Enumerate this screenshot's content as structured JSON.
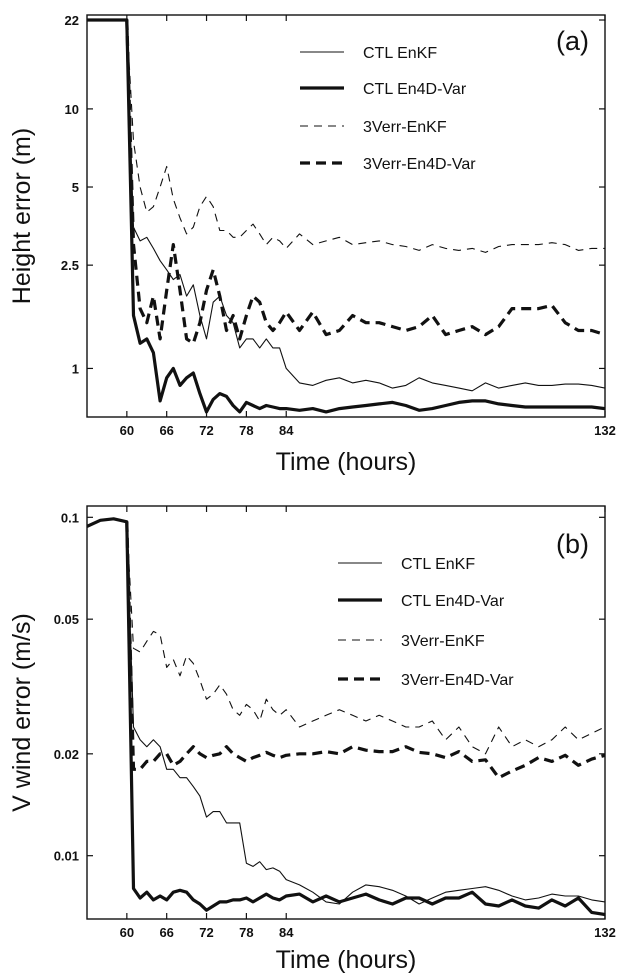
{
  "chart_data": [
    {
      "type": "line",
      "panel_label": "(a)",
      "xlabel": "Time (hours)",
      "ylabel": "Height error (m)",
      "y_scale": "log",
      "xlim": [
        54,
        132
      ],
      "ylim": [
        0.65,
        23
      ],
      "x_ticks": [
        60,
        66,
        72,
        78,
        84,
        132
      ],
      "y_ticks": [
        1,
        2.5,
        5,
        10,
        22
      ],
      "legend_position": "top-right",
      "grid": false,
      "series": [
        {
          "name": "CTL EnKF",
          "style": "thin-solid",
          "x": [
            54,
            60,
            61,
            62,
            63,
            64,
            65,
            66,
            67,
            68,
            69,
            70,
            71,
            72,
            73,
            74,
            75,
            76,
            77,
            78,
            79,
            80,
            81,
            82,
            83,
            84,
            86,
            88,
            90,
            92,
            94,
            96,
            98,
            100,
            102,
            104,
            106,
            108,
            110,
            112,
            114,
            116,
            118,
            120,
            122,
            124,
            126,
            128,
            130,
            132
          ],
          "y": [
            22,
            22,
            3.5,
            3.1,
            3.2,
            2.9,
            2.6,
            2.4,
            2.2,
            2.3,
            1.9,
            2.1,
            1.6,
            1.3,
            1.8,
            1.9,
            1.6,
            1.5,
            1.2,
            1.3,
            1.3,
            1.2,
            1.3,
            1.2,
            1.2,
            1.0,
            0.88,
            0.86,
            0.9,
            0.92,
            0.88,
            0.9,
            0.88,
            0.84,
            0.86,
            0.92,
            0.88,
            0.86,
            0.84,
            0.82,
            0.88,
            0.84,
            0.86,
            0.88,
            0.86,
            0.86,
            0.87,
            0.87,
            0.86,
            0.84
          ]
        },
        {
          "name": "CTL En4D-Var",
          "style": "thick-solid",
          "x": [
            54,
            60,
            61,
            62,
            63,
            64,
            65,
            66,
            67,
            68,
            69,
            70,
            71,
            72,
            73,
            74,
            75,
            76,
            77,
            78,
            79,
            80,
            81,
            82,
            83,
            84,
            86,
            88,
            90,
            92,
            94,
            96,
            98,
            100,
            102,
            104,
            106,
            108,
            110,
            112,
            114,
            116,
            118,
            120,
            122,
            124,
            126,
            128,
            130,
            132
          ],
          "y": [
            22,
            22,
            1.6,
            1.25,
            1.3,
            1.15,
            0.75,
            0.92,
            1.0,
            0.86,
            0.92,
            0.96,
            0.8,
            0.68,
            0.76,
            0.8,
            0.78,
            0.72,
            0.68,
            0.74,
            0.72,
            0.7,
            0.72,
            0.71,
            0.7,
            0.7,
            0.69,
            0.7,
            0.68,
            0.7,
            0.71,
            0.72,
            0.73,
            0.74,
            0.72,
            0.69,
            0.7,
            0.72,
            0.74,
            0.75,
            0.75,
            0.73,
            0.72,
            0.71,
            0.71,
            0.71,
            0.71,
            0.71,
            0.71,
            0.7
          ]
        },
        {
          "name": "3Verr-EnKF",
          "style": "thin-dashed",
          "x": [
            60,
            61,
            62,
            63,
            64,
            65,
            66,
            67,
            68,
            69,
            70,
            71,
            72,
            73,
            74,
            75,
            76,
            77,
            78,
            79,
            80,
            81,
            82,
            83,
            84,
            86,
            88,
            90,
            92,
            94,
            96,
            98,
            100,
            102,
            104,
            106,
            108,
            110,
            112,
            114,
            116,
            118,
            120,
            122,
            124,
            126,
            128,
            130,
            132
          ],
          "y": [
            22,
            7.5,
            5.0,
            4.0,
            4.2,
            5.0,
            6.0,
            4.5,
            3.8,
            3.3,
            3.5,
            4.2,
            4.6,
            4.2,
            3.4,
            3.4,
            3.2,
            3.2,
            3.4,
            3.6,
            3.3,
            3.0,
            3.2,
            3.1,
            2.9,
            3.3,
            3.0,
            3.1,
            3.2,
            3.0,
            3.05,
            3.1,
            3.0,
            2.95,
            2.85,
            3.0,
            2.9,
            2.85,
            2.9,
            2.8,
            2.95,
            3.0,
            3.0,
            3.0,
            3.05,
            3.0,
            2.85,
            2.9,
            2.9
          ]
        },
        {
          "name": "3Verr-En4D-Var",
          "style": "thick-dashed",
          "x": [
            60,
            61,
            62,
            63,
            64,
            65,
            66,
            67,
            68,
            69,
            70,
            71,
            72,
            73,
            74,
            75,
            76,
            77,
            78,
            79,
            80,
            81,
            82,
            83,
            84,
            86,
            88,
            90,
            92,
            94,
            96,
            98,
            100,
            102,
            104,
            106,
            108,
            110,
            112,
            114,
            116,
            118,
            120,
            122,
            124,
            126,
            128,
            130,
            132
          ],
          "y": [
            22,
            3.0,
            1.7,
            1.5,
            1.9,
            1.3,
            2.0,
            3.0,
            2.0,
            1.3,
            1.25,
            1.5,
            2.0,
            2.4,
            1.9,
            1.4,
            1.6,
            1.3,
            1.6,
            1.9,
            1.8,
            1.5,
            1.4,
            1.5,
            1.65,
            1.4,
            1.65,
            1.35,
            1.4,
            1.6,
            1.5,
            1.5,
            1.45,
            1.4,
            1.45,
            1.6,
            1.35,
            1.4,
            1.45,
            1.35,
            1.45,
            1.7,
            1.7,
            1.7,
            1.75,
            1.5,
            1.4,
            1.4,
            1.35
          ]
        }
      ]
    },
    {
      "type": "line",
      "panel_label": "(b)",
      "xlabel": "Time (hours)",
      "ylabel": "V wind error (m/s)",
      "y_scale": "log",
      "xlim": [
        54,
        132
      ],
      "ylim": [
        0.0065,
        0.108
      ],
      "x_ticks": [
        60,
        66,
        72,
        78,
        84,
        132
      ],
      "y_ticks": [
        0.01,
        0.02,
        0.05,
        0.1
      ],
      "legend_position": "top-right",
      "grid": false,
      "series": [
        {
          "name": "CTL EnKF",
          "style": "thin-solid",
          "x": [
            54,
            56,
            58,
            60,
            61,
            62,
            63,
            64,
            65,
            66,
            67,
            68,
            69,
            70,
            71,
            72,
            73,
            74,
            75,
            76,
            77,
            78,
            79,
            80,
            81,
            82,
            83,
            84,
            86,
            88,
            90,
            92,
            94,
            96,
            98,
            100,
            102,
            104,
            106,
            108,
            110,
            112,
            114,
            116,
            118,
            120,
            122,
            124,
            126,
            128,
            130,
            132
          ],
          "y": [
            0.094,
            0.098,
            0.099,
            0.097,
            0.024,
            0.022,
            0.021,
            0.022,
            0.021,
            0.018,
            0.018,
            0.017,
            0.017,
            0.016,
            0.015,
            0.013,
            0.0135,
            0.0135,
            0.0125,
            0.0125,
            0.0125,
            0.0095,
            0.0093,
            0.0096,
            0.0091,
            0.0092,
            0.009,
            0.0085,
            0.0082,
            0.0078,
            0.0073,
            0.0072,
            0.0078,
            0.0082,
            0.0081,
            0.0079,
            0.0076,
            0.0072,
            0.0075,
            0.0078,
            0.0079,
            0.008,
            0.0081,
            0.0079,
            0.0076,
            0.0074,
            0.0075,
            0.0077,
            0.0076,
            0.0076,
            0.0074,
            0.0073
          ]
        },
        {
          "name": "CTL En4D-Var",
          "style": "thick-solid",
          "x": [
            54,
            56,
            58,
            60,
            61,
            62,
            63,
            64,
            65,
            66,
            67,
            68,
            69,
            70,
            71,
            72,
            73,
            74,
            75,
            76,
            77,
            78,
            79,
            80,
            81,
            82,
            83,
            84,
            86,
            88,
            90,
            92,
            94,
            96,
            98,
            100,
            102,
            104,
            106,
            108,
            110,
            112,
            114,
            116,
            118,
            120,
            122,
            124,
            126,
            128,
            130,
            132
          ],
          "y": [
            0.094,
            0.098,
            0.099,
            0.097,
            0.008,
            0.0075,
            0.0078,
            0.0074,
            0.0076,
            0.0074,
            0.0078,
            0.0079,
            0.0078,
            0.0074,
            0.0072,
            0.0069,
            0.0071,
            0.0073,
            0.0073,
            0.0074,
            0.0074,
            0.0075,
            0.0073,
            0.0075,
            0.0077,
            0.0075,
            0.0074,
            0.0076,
            0.0077,
            0.0073,
            0.0076,
            0.0073,
            0.0075,
            0.0077,
            0.0074,
            0.0072,
            0.0075,
            0.0075,
            0.0072,
            0.0075,
            0.0075,
            0.0078,
            0.0072,
            0.0071,
            0.0074,
            0.0071,
            0.007,
            0.0074,
            0.0071,
            0.0075,
            0.0068,
            0.0067
          ]
        },
        {
          "name": "3Verr-EnKF",
          "style": "thin-dashed",
          "x": [
            60,
            61,
            62,
            63,
            64,
            65,
            66,
            67,
            68,
            69,
            70,
            71,
            72,
            73,
            74,
            75,
            76,
            77,
            78,
            79,
            80,
            81,
            82,
            83,
            84,
            86,
            88,
            90,
            92,
            94,
            96,
            98,
            100,
            102,
            104,
            106,
            108,
            110,
            112,
            114,
            116,
            118,
            120,
            122,
            124,
            126,
            128,
            130,
            132
          ],
          "y": [
            0.097,
            0.041,
            0.04,
            0.043,
            0.046,
            0.045,
            0.036,
            0.038,
            0.034,
            0.039,
            0.037,
            0.033,
            0.029,
            0.03,
            0.032,
            0.03,
            0.027,
            0.026,
            0.028,
            0.027,
            0.025,
            0.029,
            0.027,
            0.026,
            0.027,
            0.024,
            0.025,
            0.026,
            0.027,
            0.026,
            0.025,
            0.026,
            0.025,
            0.024,
            0.024,
            0.025,
            0.022,
            0.024,
            0.021,
            0.02,
            0.024,
            0.021,
            0.022,
            0.021,
            0.022,
            0.024,
            0.022,
            0.023,
            0.024
          ]
        },
        {
          "name": "3Verr-En4D-Var",
          "style": "thick-dashed",
          "x": [
            60,
            61,
            62,
            63,
            64,
            65,
            66,
            67,
            68,
            69,
            70,
            71,
            72,
            73,
            74,
            75,
            76,
            77,
            78,
            79,
            80,
            81,
            82,
            83,
            84,
            86,
            88,
            90,
            92,
            94,
            96,
            98,
            100,
            102,
            104,
            106,
            108,
            110,
            112,
            114,
            116,
            118,
            120,
            122,
            124,
            126,
            128,
            130,
            132
          ],
          "y": [
            0.097,
            0.018,
            0.018,
            0.019,
            0.019,
            0.02,
            0.02,
            0.0185,
            0.019,
            0.02,
            0.021,
            0.02,
            0.0195,
            0.0198,
            0.02,
            0.021,
            0.02,
            0.0195,
            0.019,
            0.0195,
            0.0198,
            0.0202,
            0.0198,
            0.0195,
            0.0198,
            0.02,
            0.02,
            0.0203,
            0.02,
            0.021,
            0.0205,
            0.0203,
            0.0203,
            0.021,
            0.0202,
            0.02,
            0.0195,
            0.0203,
            0.019,
            0.0192,
            0.017,
            0.0178,
            0.0185,
            0.0195,
            0.019,
            0.0198,
            0.0185,
            0.0193,
            0.0198
          ]
        }
      ]
    }
  ]
}
